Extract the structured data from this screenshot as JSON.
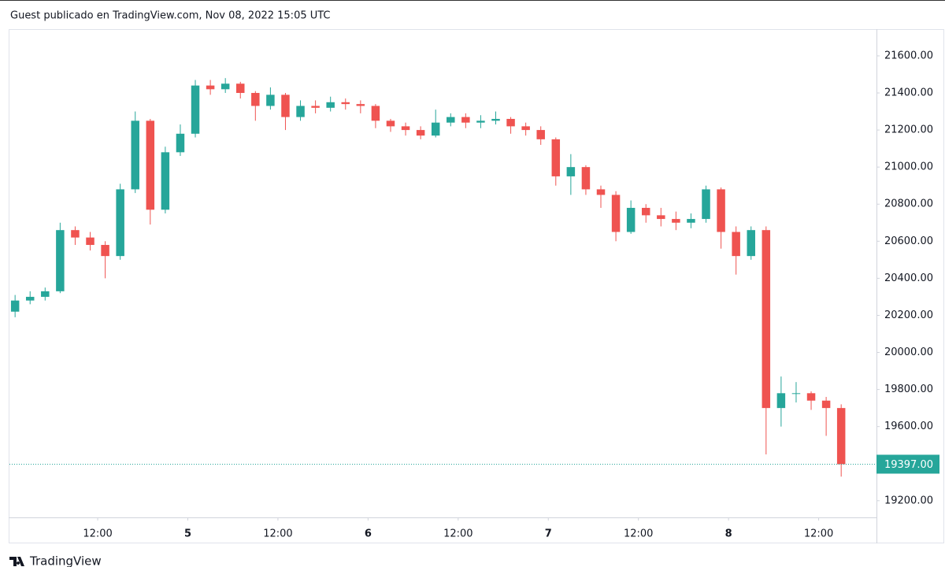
{
  "header": "Guest publicado en TradingView.com, Nov 08, 2022 15:05 UTC",
  "footer": "TradingView",
  "chart_data": {
    "type": "candlestick",
    "x": [
      1,
      3,
      5,
      7,
      9,
      11,
      13,
      15,
      17,
      19,
      21,
      23,
      25,
      27,
      29,
      31,
      33,
      35,
      37,
      39,
      41,
      43,
      45,
      47,
      49,
      51,
      53,
      55,
      57,
      59,
      61,
      63,
      65,
      67,
      69,
      71,
      73,
      75,
      77,
      79,
      81,
      83,
      85,
      87,
      89,
      91,
      93,
      95,
      97,
      99,
      101,
      103,
      105,
      107,
      109,
      111
    ],
    "open": [
      20220,
      20280,
      20300,
      20330,
      20660,
      20620,
      20580,
      20520,
      20880,
      21250,
      20770,
      21080,
      21180,
      21440,
      21420,
      21450,
      21400,
      21330,
      21390,
      21270,
      21330,
      21320,
      21350,
      21340,
      21330,
      21250,
      21220,
      21200,
      21170,
      21240,
      21270,
      21240,
      21250,
      21260,
      21220,
      21200,
      21150,
      20950,
      21000,
      20880,
      20850,
      20650,
      20780,
      20740,
      20720,
      20700,
      20720,
      20880,
      20650,
      20520,
      20660,
      19700,
      19780,
      19780,
      19740,
      19700
    ],
    "high": [
      20310,
      20330,
      20350,
      20700,
      20680,
      20650,
      20600,
      20910,
      21300,
      21260,
      21110,
      21230,
      21470,
      21470,
      21480,
      21460,
      21410,
      21430,
      21400,
      21360,
      21360,
      21380,
      21370,
      21360,
      21340,
      21260,
      21240,
      21220,
      21310,
      21290,
      21290,
      21280,
      21300,
      21270,
      21240,
      21220,
      21160,
      21070,
      21010,
      20900,
      20870,
      20820,
      20800,
      20780,
      20760,
      20750,
      20900,
      20890,
      20680,
      20680,
      20680,
      19870,
      19840,
      19790,
      19760,
      19720
    ],
    "low": [
      20190,
      20260,
      20280,
      20320,
      20580,
      20550,
      20400,
      20500,
      20860,
      20690,
      20750,
      21060,
      21160,
      21390,
      21400,
      21370,
      21250,
      21310,
      21200,
      21250,
      21290,
      21300,
      21310,
      21290,
      21210,
      21190,
      21170,
      21150,
      21160,
      21220,
      21210,
      21210,
      21230,
      21180,
      21170,
      21120,
      20900,
      20850,
      20850,
      20780,
      20600,
      20640,
      20700,
      20680,
      20660,
      20670,
      20700,
      20560,
      20420,
      20500,
      19450,
      19600,
      19730,
      19690,
      19550,
      19330
    ],
    "close": [
      20280,
      20300,
      20330,
      20660,
      20620,
      20580,
      20520,
      20880,
      21250,
      20770,
      21080,
      21180,
      21440,
      21420,
      21450,
      21400,
      21330,
      21390,
      21270,
      21330,
      21320,
      21350,
      21340,
      21330,
      21250,
      21220,
      21200,
      21170,
      21240,
      21270,
      21240,
      21250,
      21260,
      21220,
      21200,
      21150,
      20950,
      21000,
      20880,
      20850,
      20650,
      20780,
      20740,
      20720,
      20700,
      20720,
      20880,
      20650,
      20520,
      20660,
      19700,
      19780,
      19780,
      19740,
      19700,
      19397
    ],
    "up_color": "#26a69a",
    "down_color": "#ef5350",
    "xlim": [
      0.25,
      115.7
    ],
    "xticks": [
      {
        "value": 12,
        "label": "12:00"
      },
      {
        "value": 24,
        "label": "5"
      },
      {
        "value": 36,
        "label": "12:00"
      },
      {
        "value": 48,
        "label": "6"
      },
      {
        "value": 60,
        "label": "12:00"
      },
      {
        "value": 72,
        "label": "7"
      },
      {
        "value": 84,
        "label": "12:00"
      },
      {
        "value": 96,
        "label": "8"
      },
      {
        "value": 108,
        "label": "12:00"
      }
    ],
    "ylim": [
      19110,
      21740
    ],
    "yticks": [
      {
        "value": 19200,
        "label": "19200.00"
      },
      {
        "value": 19400,
        "label": "19400.00"
      },
      {
        "value": 19600,
        "label": "19600.00"
      },
      {
        "value": 19800,
        "label": "19800.00"
      },
      {
        "value": 20000,
        "label": "20000.00"
      },
      {
        "value": 20200,
        "label": "20200.00"
      },
      {
        "value": 20400,
        "label": "20400.00"
      },
      {
        "value": 20600,
        "label": "20600.00"
      },
      {
        "value": 20800,
        "label": "20800.00"
      },
      {
        "value": 21000,
        "label": "21000.00"
      },
      {
        "value": 21200,
        "label": "21200.00"
      },
      {
        "value": 21400,
        "label": "21400.00"
      },
      {
        "value": 21600,
        "label": "21600.00"
      }
    ],
    "last_price": {
      "value": 19397,
      "label": "19397.00"
    },
    "grid": false
  }
}
